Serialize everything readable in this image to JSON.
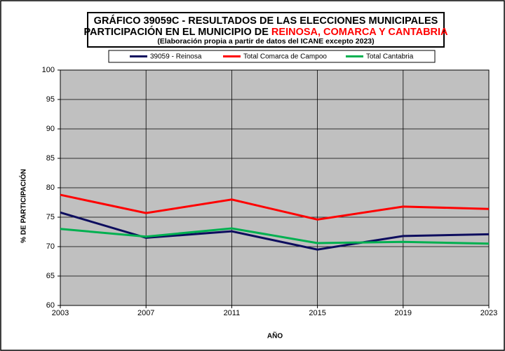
{
  "chart_data": {
    "type": "line",
    "title_line1": "GRÁFICO 39059C - RESULTADOS DE LAS ELECCIONES MUNICIPALES",
    "title_line2": "PARTICIPACIÓN EN EL MUNICIPIO DE",
    "title_line2_highlight": "REINOSA, COMARCA Y CANTABRIA",
    "subtitle": "(Elaboración propia a partir de datos del ICANE excepto 2023)",
    "x_label": "AÑO",
    "y_label": "% DE PARTICIPACIÓN",
    "x": [
      2003,
      2007,
      2011,
      2015,
      2019,
      2023
    ],
    "xlim": [
      2003,
      2023
    ],
    "xticks": [
      2003,
      2007,
      2011,
      2015,
      2019,
      2023
    ],
    "ylim": [
      60,
      100
    ],
    "yticks": [
      60,
      65,
      70,
      75,
      80,
      85,
      90,
      95,
      100
    ],
    "grid": true,
    "plot_background": "#c0c0c0",
    "highlight_color": "#ff0000",
    "series": [
      {
        "name": "39059 - Reinosa",
        "color": "#0d0d5e",
        "values": [
          75.8,
          71.5,
          72.6,
          69.5,
          71.8,
          72.1
        ]
      },
      {
        "name": "Total Comarca de Campoo",
        "color": "#ff0000",
        "values": [
          78.8,
          75.7,
          78.0,
          74.6,
          76.8,
          76.4
        ]
      },
      {
        "name": "Total Cantabria",
        "color": "#00b050",
        "values": [
          73.0,
          71.7,
          73.1,
          70.6,
          70.8,
          70.5
        ]
      }
    ]
  }
}
